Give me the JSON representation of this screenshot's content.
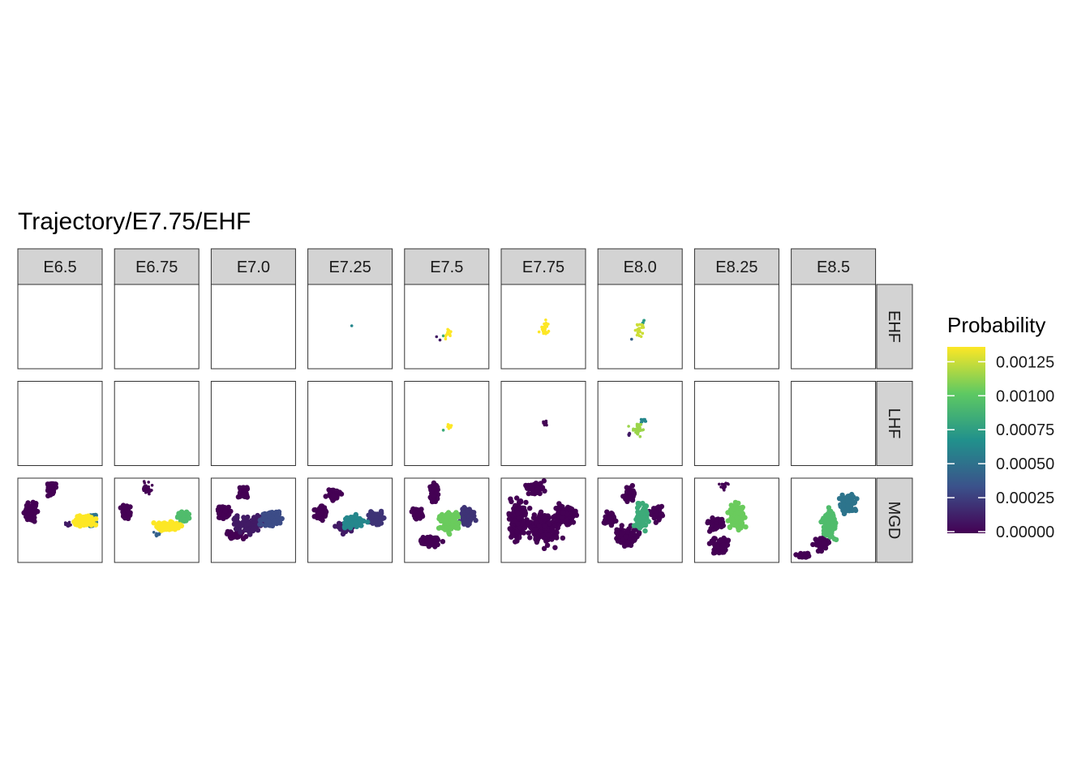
{
  "chart_data": {
    "type": "scatter",
    "title": "Trajectory/E7.75/EHF",
    "columns": [
      "E6.5",
      "E6.75",
      "E7.0",
      "E7.25",
      "E7.5",
      "E7.75",
      "E8.0",
      "E8.25",
      "E8.5"
    ],
    "rows": [
      "EHF",
      "LHF",
      "MGD"
    ],
    "color_scale": {
      "palette": "viridis",
      "colors": [
        "#440154",
        "#3b528b",
        "#21918c",
        "#5ec962",
        "#fde725"
      ],
      "title": "Probability",
      "range": [
        0,
        0.0013
      ],
      "breaks": [
        0,
        0.00025,
        0.0005,
        0.00075,
        0.001,
        0.00125
      ],
      "break_labels": [
        "0.00000",
        "0.00025",
        "0.00050",
        "0.00075",
        "0.00100",
        "0.00125"
      ]
    },
    "legend_position": "right",
    "grid": false,
    "note_values": "approximate cluster positions in embedding units (0-1 per axis) with probability values",
    "panels": {
      "EHF": {
        "E6.5": [],
        "E6.75": [],
        "E7.0": [],
        "E7.25": [
          {
            "x": 0.52,
            "y": 0.49,
            "sx": 0.0,
            "sy": 0.0,
            "n": 1,
            "p": 0.0006
          }
        ],
        "E7.5": [
          {
            "x": 0.52,
            "y": 0.58,
            "sx": 0.04,
            "sy": 0.05,
            "n": 14,
            "p": 0.0013
          },
          {
            "x": 0.46,
            "y": 0.61,
            "sx": 0.0,
            "sy": 0.0,
            "n": 1,
            "p": 0.0008
          },
          {
            "x": 0.38,
            "y": 0.62,
            "sx": 0.0,
            "sy": 0.0,
            "n": 1,
            "p": 0.0001
          },
          {
            "x": 0.42,
            "y": 0.66,
            "sx": 0.0,
            "sy": 0.0,
            "n": 1,
            "p": 0.0001
          }
        ],
        "E7.75": [
          {
            "x": 0.51,
            "y": 0.52,
            "sx": 0.04,
            "sy": 0.08,
            "n": 26,
            "p": 0.0013
          }
        ],
        "E8.0": [
          {
            "x": 0.5,
            "y": 0.53,
            "sx": 0.05,
            "sy": 0.07,
            "n": 22,
            "p": 0.0012
          },
          {
            "x": 0.55,
            "y": 0.45,
            "sx": 0.02,
            "sy": 0.02,
            "n": 5,
            "p": 0.0007
          },
          {
            "x": 0.4,
            "y": 0.65,
            "sx": 0.0,
            "sy": 0.0,
            "n": 1,
            "p": 0.0004
          }
        ],
        "E8.25": [],
        "E8.5": []
      },
      "LHF": {
        "E6.5": [],
        "E6.75": [],
        "E7.0": [],
        "E7.25": [],
        "E7.5": [
          {
            "x": 0.52,
            "y": 0.53,
            "sx": 0.03,
            "sy": 0.03,
            "n": 8,
            "p": 0.0013
          },
          {
            "x": 0.46,
            "y": 0.58,
            "sx": 0.0,
            "sy": 0.0,
            "n": 1,
            "p": 0.0008
          }
        ],
        "E7.75": [
          {
            "x": 0.51,
            "y": 0.5,
            "sx": 0.03,
            "sy": 0.02,
            "n": 10,
            "p": 0.0
          }
        ],
        "E8.0": [
          {
            "x": 0.47,
            "y": 0.57,
            "sx": 0.07,
            "sy": 0.06,
            "n": 28,
            "p": 0.0011
          },
          {
            "x": 0.55,
            "y": 0.47,
            "sx": 0.03,
            "sy": 0.03,
            "n": 8,
            "p": 0.0006
          },
          {
            "x": 0.38,
            "y": 0.63,
            "sx": 0.02,
            "sy": 0.02,
            "n": 4,
            "p": 0.0001
          }
        ],
        "E8.25": [],
        "E8.5": []
      },
      "MGD": {
        "E6.5": [
          {
            "x": 0.16,
            "y": 0.4,
            "sx": 0.06,
            "sy": 0.08,
            "n": 70,
            "p": 0.0
          },
          {
            "x": 0.4,
            "y": 0.12,
            "sx": 0.05,
            "sy": 0.06,
            "n": 40,
            "p": 0.0
          },
          {
            "x": 0.78,
            "y": 0.5,
            "sx": 0.1,
            "sy": 0.06,
            "n": 80,
            "p": 0.0013
          },
          {
            "x": 0.86,
            "y": 0.5,
            "sx": 0.05,
            "sy": 0.05,
            "n": 40,
            "p": 0.0005
          },
          {
            "x": 0.6,
            "y": 0.55,
            "sx": 0.04,
            "sy": 0.03,
            "n": 12,
            "p": 0.0001
          }
        ],
        "E6.75": [
          {
            "x": 0.14,
            "y": 0.4,
            "sx": 0.05,
            "sy": 0.07,
            "n": 40,
            "p": 0.0
          },
          {
            "x": 0.38,
            "y": 0.12,
            "sx": 0.05,
            "sy": 0.06,
            "n": 30,
            "p": 0.0
          },
          {
            "x": 0.64,
            "y": 0.57,
            "sx": 0.12,
            "sy": 0.05,
            "n": 70,
            "p": 0.0013
          },
          {
            "x": 0.82,
            "y": 0.46,
            "sx": 0.05,
            "sy": 0.06,
            "n": 40,
            "p": 0.0009
          },
          {
            "x": 0.5,
            "y": 0.67,
            "sx": 0.05,
            "sy": 0.03,
            "n": 8,
            "p": 0.0004
          }
        ],
        "E7.0": [
          {
            "x": 0.38,
            "y": 0.16,
            "sx": 0.05,
            "sy": 0.07,
            "n": 40,
            "p": 0.0
          },
          {
            "x": 0.14,
            "y": 0.4,
            "sx": 0.06,
            "sy": 0.07,
            "n": 60,
            "p": 0.0
          },
          {
            "x": 0.45,
            "y": 0.55,
            "sx": 0.14,
            "sy": 0.07,
            "n": 120,
            "p": 0.0001
          },
          {
            "x": 0.72,
            "y": 0.48,
            "sx": 0.1,
            "sy": 0.07,
            "n": 90,
            "p": 0.0003
          },
          {
            "x": 0.3,
            "y": 0.68,
            "sx": 0.1,
            "sy": 0.04,
            "n": 40,
            "p": 0.0
          }
        ],
        "E7.25": [
          {
            "x": 0.14,
            "y": 0.4,
            "sx": 0.06,
            "sy": 0.07,
            "n": 60,
            "p": 0.0
          },
          {
            "x": 0.3,
            "y": 0.2,
            "sx": 0.06,
            "sy": 0.06,
            "n": 40,
            "p": 0.0
          },
          {
            "x": 0.55,
            "y": 0.52,
            "sx": 0.1,
            "sy": 0.06,
            "n": 60,
            "p": 0.0006
          },
          {
            "x": 0.8,
            "y": 0.48,
            "sx": 0.08,
            "sy": 0.07,
            "n": 70,
            "p": 0.0002
          },
          {
            "x": 0.45,
            "y": 0.58,
            "sx": 0.08,
            "sy": 0.05,
            "n": 50,
            "p": 0.0001
          }
        ],
        "E7.5": [
          {
            "x": 0.35,
            "y": 0.18,
            "sx": 0.05,
            "sy": 0.1,
            "n": 60,
            "p": 0.0
          },
          {
            "x": 0.15,
            "y": 0.43,
            "sx": 0.05,
            "sy": 0.06,
            "n": 50,
            "p": 0.0
          },
          {
            "x": 0.53,
            "y": 0.52,
            "sx": 0.1,
            "sy": 0.1,
            "n": 110,
            "p": 0.001
          },
          {
            "x": 0.75,
            "y": 0.45,
            "sx": 0.08,
            "sy": 0.08,
            "n": 70,
            "p": 0.0002
          },
          {
            "x": 0.3,
            "y": 0.75,
            "sx": 0.1,
            "sy": 0.05,
            "n": 50,
            "p": 0.0
          }
        ],
        "E7.75": [
          {
            "x": 0.4,
            "y": 0.12,
            "sx": 0.08,
            "sy": 0.05,
            "n": 60,
            "p": 0.0
          },
          {
            "x": 0.2,
            "y": 0.5,
            "sx": 0.08,
            "sy": 0.2,
            "n": 140,
            "p": 0.0
          },
          {
            "x": 0.5,
            "y": 0.6,
            "sx": 0.15,
            "sy": 0.15,
            "n": 180,
            "p": 0.0
          },
          {
            "x": 0.75,
            "y": 0.45,
            "sx": 0.1,
            "sy": 0.1,
            "n": 100,
            "p": 0.0
          }
        ],
        "E8.0": [
          {
            "x": 0.38,
            "y": 0.2,
            "sx": 0.06,
            "sy": 0.07,
            "n": 50,
            "p": 0.0
          },
          {
            "x": 0.14,
            "y": 0.48,
            "sx": 0.06,
            "sy": 0.06,
            "n": 50,
            "p": 0.0
          },
          {
            "x": 0.52,
            "y": 0.45,
            "sx": 0.06,
            "sy": 0.12,
            "n": 90,
            "p": 0.0008
          },
          {
            "x": 0.35,
            "y": 0.7,
            "sx": 0.1,
            "sy": 0.1,
            "n": 90,
            "p": 0.0
          },
          {
            "x": 0.7,
            "y": 0.4,
            "sx": 0.07,
            "sy": 0.08,
            "n": 40,
            "p": 0.0
          }
        ],
        "E8.25": [
          {
            "x": 0.35,
            "y": 0.1,
            "sx": 0.04,
            "sy": 0.04,
            "n": 20,
            "p": 0.0
          },
          {
            "x": 0.5,
            "y": 0.45,
            "sx": 0.08,
            "sy": 0.14,
            "n": 100,
            "p": 0.001
          },
          {
            "x": 0.25,
            "y": 0.55,
            "sx": 0.08,
            "sy": 0.06,
            "n": 50,
            "p": 0.0
          },
          {
            "x": 0.3,
            "y": 0.8,
            "sx": 0.08,
            "sy": 0.08,
            "n": 60,
            "p": 0.0
          }
        ],
        "E8.5": [
          {
            "x": 0.68,
            "y": 0.3,
            "sx": 0.08,
            "sy": 0.1,
            "n": 60,
            "p": 0.0005
          },
          {
            "x": 0.45,
            "y": 0.55,
            "sx": 0.07,
            "sy": 0.14,
            "n": 100,
            "p": 0.0009
          },
          {
            "x": 0.15,
            "y": 0.92,
            "sx": 0.06,
            "sy": 0.02,
            "n": 40,
            "p": 0.0
          },
          {
            "x": 0.35,
            "y": 0.78,
            "sx": 0.06,
            "sy": 0.06,
            "n": 40,
            "p": 0.0
          }
        ]
      }
    }
  }
}
